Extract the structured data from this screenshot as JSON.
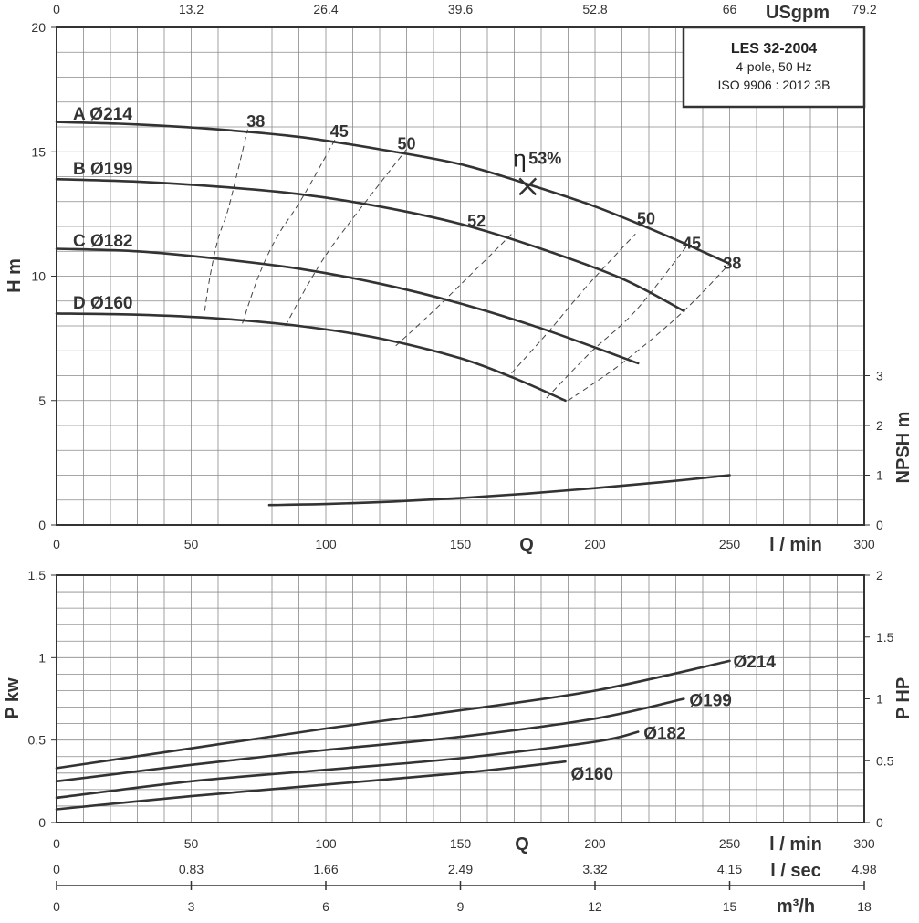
{
  "legend_box": {
    "model": "LES 32-2004",
    "line2": "4-pole, 50 Hz",
    "line3": "ISO 9906 : 2012 3B"
  },
  "colors": {
    "line": "#333333",
    "grid": "#8a8a8a",
    "background": "#ffffff"
  },
  "axes": {
    "top_usgpm": {
      "unit": "USgpm",
      "ticks": [
        "0",
        "13.2",
        "26.4",
        "39.6",
        "52.8",
        "66",
        "79.2"
      ]
    },
    "q_lmin": {
      "unit": "l / min",
      "symbol": "Q",
      "ticks": [
        "0",
        "50",
        "100",
        "150",
        "200",
        "250",
        "300"
      ]
    },
    "q_lsec": {
      "unit": "l / sec",
      "ticks": [
        "0",
        "0.83",
        "1.66",
        "2.49",
        "3.32",
        "4.15",
        "4.98"
      ]
    },
    "q_m3h": {
      "unit": "m³/h",
      "ticks": [
        "0",
        "3",
        "6",
        "9",
        "12",
        "15",
        "18"
      ]
    },
    "head": {
      "label": "H m",
      "ticks": [
        "0",
        "5",
        "10",
        "15",
        "20"
      ]
    },
    "npsh": {
      "label": "NPSH m",
      "ticks": [
        "0",
        "1",
        "2",
        "3"
      ]
    },
    "power_kw": {
      "label": "P kw",
      "ticks": [
        "0",
        "0.5",
        "1",
        "1.5"
      ]
    },
    "power_hp": {
      "label": "P HP",
      "ticks": [
        "0",
        "0.5",
        "1",
        "1.5",
        "2"
      ]
    }
  },
  "chart_data": [
    {
      "type": "line",
      "panel": "head",
      "xlim": [
        0,
        300
      ],
      "ylim": [
        0,
        20
      ],
      "grid": true,
      "series": [
        {
          "name": "A Ø214",
          "x": [
            0,
            30,
            60,
            90,
            120,
            150,
            175,
            200,
            225,
            250
          ],
          "y": [
            16.2,
            16.1,
            15.9,
            15.6,
            15.1,
            14.5,
            13.7,
            12.8,
            11.7,
            10.5
          ]
        },
        {
          "name": "B Ø199",
          "x": [
            0,
            30,
            60,
            90,
            120,
            150,
            180,
            210,
            233
          ],
          "y": [
            13.9,
            13.8,
            13.6,
            13.3,
            12.8,
            12.1,
            11.1,
            9.9,
            8.6
          ]
        },
        {
          "name": "C Ø182",
          "x": [
            0,
            30,
            60,
            90,
            120,
            150,
            180,
            216
          ],
          "y": [
            11.1,
            11.0,
            10.7,
            10.3,
            9.7,
            8.9,
            7.9,
            6.5
          ]
        },
        {
          "name": "D Ø160",
          "x": [
            0,
            30,
            60,
            90,
            120,
            150,
            170,
            189
          ],
          "y": [
            8.5,
            8.45,
            8.3,
            8.0,
            7.5,
            6.7,
            5.9,
            5.0
          ]
        }
      ],
      "efficiency_isolines": [
        {
          "label": "38",
          "x": [
            55,
            57,
            60,
            64,
            71
          ],
          "y": [
            8.6,
            10.0,
            11.5,
            12.8,
            15.9
          ]
        },
        {
          "label": "45",
          "x": [
            69,
            75,
            82,
            91,
            104
          ],
          "y": [
            8.1,
            10.0,
            11.6,
            13.1,
            15.6
          ]
        },
        {
          "label": "50",
          "x": [
            85,
            93,
            101,
            112,
            130
          ],
          "y": [
            8.0,
            9.6,
            11.0,
            12.6,
            15.1
          ]
        },
        {
          "label": "52",
          "x": [
            126,
            140,
            157,
            170
          ],
          "y": [
            7.2,
            8.6,
            10.4,
            11.8
          ]
        },
        {
          "label": "50",
          "x": [
            169,
            183,
            197,
            215
          ],
          "y": [
            6.1,
            7.8,
            9.6,
            11.7
          ]
        },
        {
          "label": "45",
          "x": [
            182,
            198,
            215,
            234
          ],
          "y": [
            5.1,
            6.9,
            8.6,
            11.2
          ]
        },
        {
          "label": "38",
          "x": [
            190,
            210,
            232,
            250
          ],
          "y": [
            5.0,
            6.5,
            8.5,
            10.5
          ]
        }
      ],
      "efficiency_labels": [
        {
          "text": "38",
          "x": 74,
          "y": 16.0
        },
        {
          "text": "45",
          "x": 105,
          "y": 15.6
        },
        {
          "text": "50",
          "x": 130,
          "y": 15.1
        },
        {
          "text": "52",
          "x": 156,
          "y": 12.0
        },
        {
          "text": "50",
          "x": 219,
          "y": 12.1
        },
        {
          "text": "45",
          "x": 236,
          "y": 11.1
        },
        {
          "text": "38",
          "x": 251,
          "y": 10.3
        }
      ],
      "best_efficiency_point": {
        "x": 175,
        "y": 13.6,
        "label": "η",
        "value": "53%"
      }
    },
    {
      "type": "line",
      "panel": "npsh",
      "ylabel": "NPSH m",
      "xlim": [
        0,
        300
      ],
      "ylim": [
        0,
        10
      ],
      "series": [
        {
          "x": [
            79,
            100,
            125,
            150,
            175,
            200,
            225,
            250
          ],
          "y": [
            0.8,
            0.84,
            0.94,
            1.08,
            1.26,
            1.48,
            1.72,
            2.0
          ]
        }
      ]
    },
    {
      "type": "line",
      "panel": "power",
      "xlim": [
        0,
        300
      ],
      "ylim": [
        0,
        1.5
      ],
      "grid": true,
      "series": [
        {
          "name": "Ø214",
          "x": [
            0,
            50,
            100,
            150,
            200,
            250
          ],
          "y": [
            0.33,
            0.45,
            0.57,
            0.68,
            0.8,
            0.98
          ]
        },
        {
          "name": "Ø199",
          "x": [
            0,
            50,
            100,
            150,
            200,
            233
          ],
          "y": [
            0.25,
            0.35,
            0.44,
            0.52,
            0.63,
            0.75
          ]
        },
        {
          "name": "Ø182",
          "x": [
            0,
            50,
            100,
            150,
            200,
            216
          ],
          "y": [
            0.15,
            0.25,
            0.32,
            0.39,
            0.49,
            0.55
          ]
        },
        {
          "name": "Ø160",
          "x": [
            0,
            50,
            100,
            150,
            189
          ],
          "y": [
            0.08,
            0.16,
            0.23,
            0.3,
            0.37
          ]
        }
      ]
    }
  ]
}
